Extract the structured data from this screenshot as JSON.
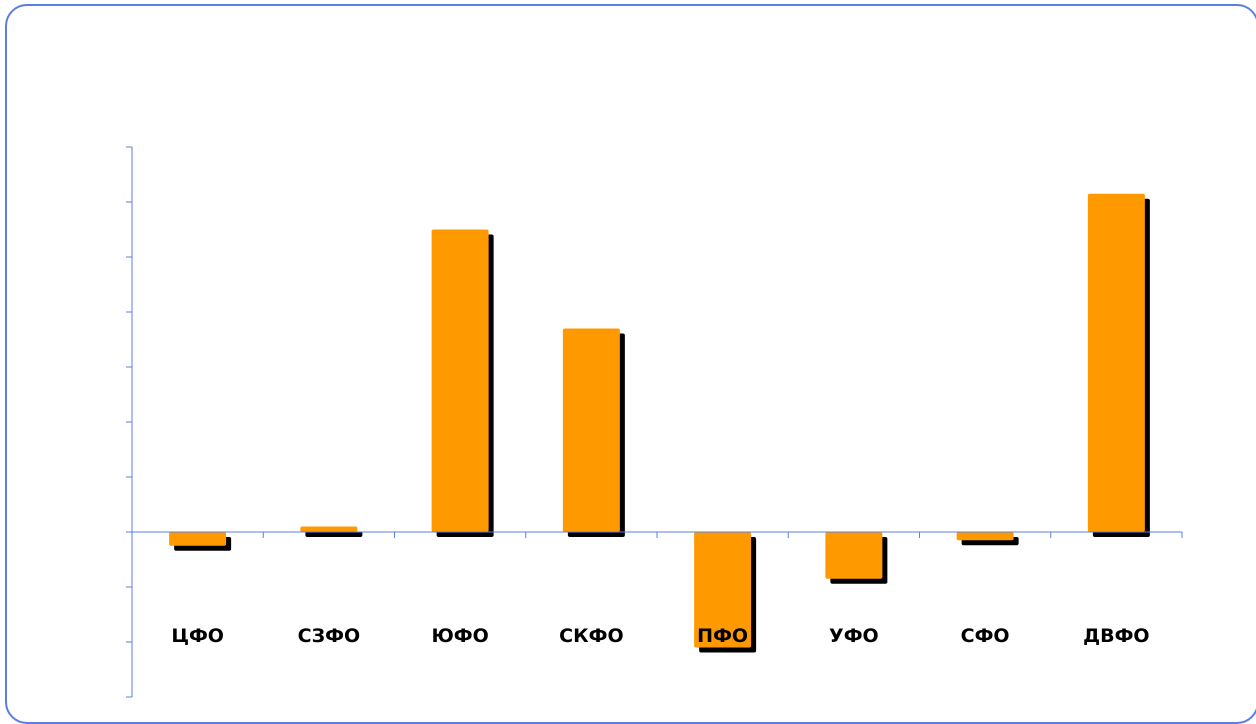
{
  "chart_data": {
    "type": "bar",
    "categories": [
      "ЦФО",
      "СЗФО",
      "ЮФО",
      "СКФО",
      "ПФО",
      "УФО",
      "СФО",
      "ДВФО"
    ],
    "values": [
      -0.25,
      0.1,
      5.5,
      3.7,
      -2.1,
      -0.85,
      -0.15,
      6.15
    ],
    "ylim": [
      -3,
      7
    ],
    "y_ticks": [
      -3,
      -2,
      -1,
      0,
      1,
      2,
      3,
      4,
      5,
      6,
      7
    ],
    "tick_labels_shown": false,
    "grid": false,
    "legend": "none",
    "bar_color": "#ff9900",
    "shadow_color": "#000000",
    "axis_color": "#5b7fe0"
  }
}
